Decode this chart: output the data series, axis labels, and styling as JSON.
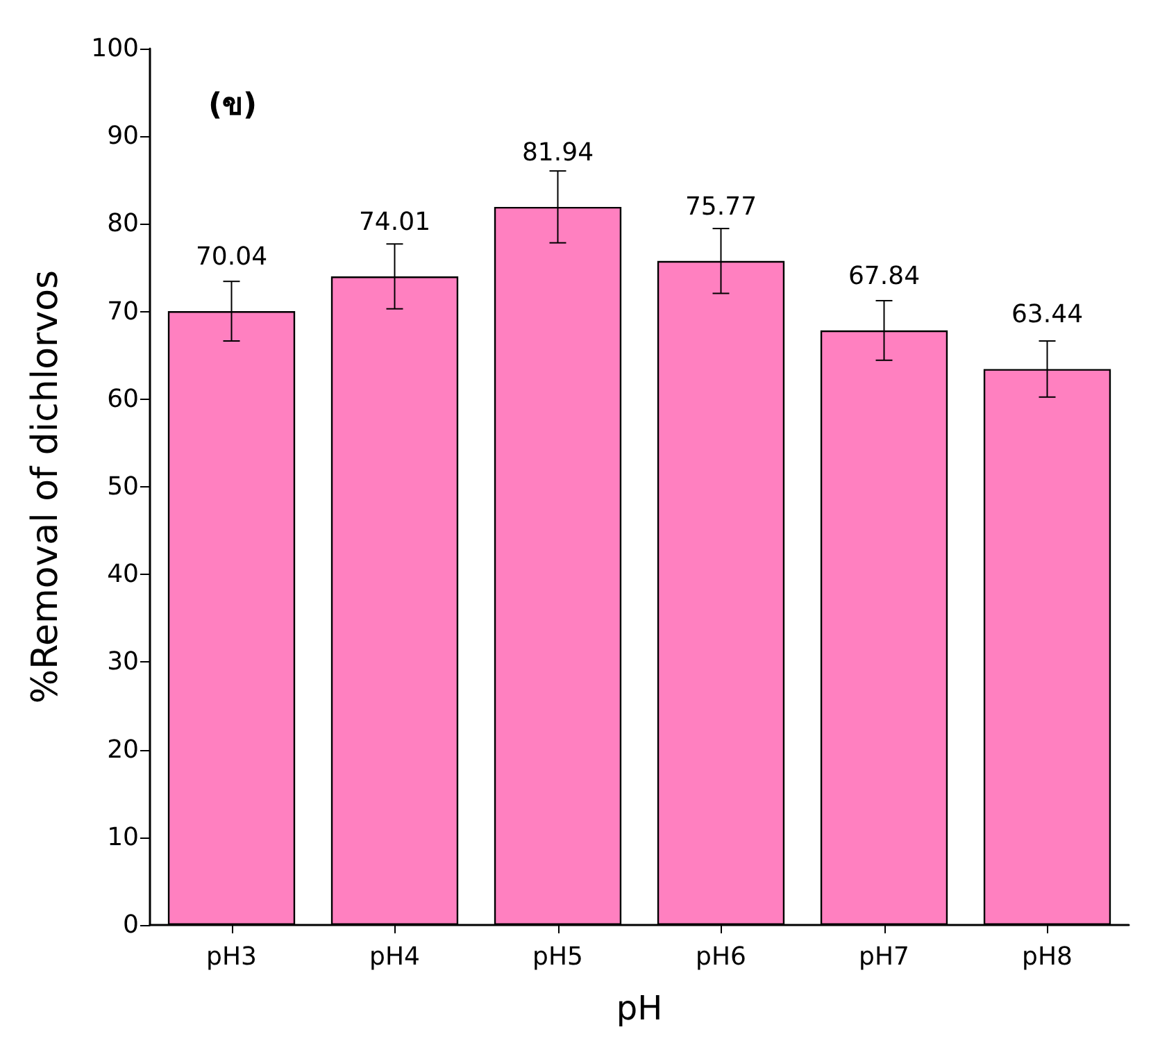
{
  "chart_data": {
    "type": "bar",
    "xlabel": "pH",
    "ylabel": "%Removal of dichlorvos",
    "annotations": [
      "(ข)"
    ],
    "categories": [
      "pH3",
      "pH4",
      "pH5",
      "pH6",
      "pH7",
      "pH8"
    ],
    "values": [
      70.04,
      74.01,
      81.94,
      75.77,
      67.84,
      63.44
    ],
    "errors": [
      3.4,
      3.7,
      4.1,
      3.7,
      3.4,
      3.2
    ],
    "color": "#ff80c0",
    "data_labels": true,
    "grid": false,
    "ylim": [
      0,
      100
    ],
    "yticks": [
      0,
      10,
      20,
      30,
      40,
      50,
      60,
      70,
      80,
      90,
      100
    ]
  }
}
